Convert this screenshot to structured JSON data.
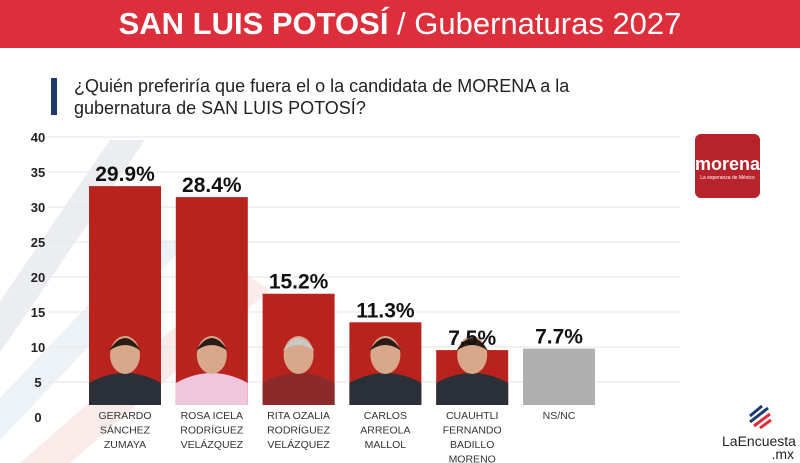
{
  "header": {
    "title_bold": "SAN LUIS POTOSÍ",
    "title_rest": " / Gubernaturas 2027"
  },
  "question": "¿Quién preferiría que fuera el o la candidata de MORENA a la gubernatura de SAN LUIS POTOSÍ?",
  "logos": {
    "morena": "morena",
    "morena_tagline": "La esperanza de México",
    "laencuesta": "LaEncuesta",
    "laencuesta_tld": ".mx"
  },
  "colors": {
    "header": "#dc2f3b",
    "bar": "#b8231e",
    "bar_other": "#b0b0b0",
    "accent": "#1c3a6e"
  },
  "chart_data": {
    "type": "bar",
    "categories": [
      [
        "GERARDO",
        "SÁNCHEZ",
        "ZUMAYA"
      ],
      [
        "ROSA ICELA",
        "RODRÍGUEZ",
        "VELÁZQUEZ"
      ],
      [
        "RITA OZALIA",
        "RODRÍGUEZ",
        "VELÁZQUEZ"
      ],
      [
        "CARLOS",
        "ARREOLA",
        "MALLOL"
      ],
      [
        "CUAUHTLI",
        "FERNANDO",
        "BADILLO",
        "MORENO"
      ],
      [
        "NS/NC"
      ]
    ],
    "values": [
      29.9,
      28.4,
      15.2,
      11.3,
      7.5,
      7.7
    ],
    "labels": [
      "29.9%",
      "28.4%",
      "15.2%",
      "11.3%",
      "7.5%",
      "7.7%"
    ],
    "photos": [
      true,
      true,
      true,
      true,
      true,
      false
    ],
    "yticks": [
      0,
      5,
      10,
      15,
      20,
      25,
      30,
      35,
      40
    ],
    "ylim": [
      0,
      40
    ],
    "grid": true
  }
}
